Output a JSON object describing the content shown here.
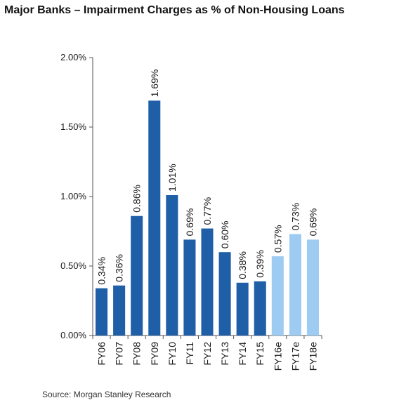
{
  "title": "Major Banks – Impairment Charges as % of Non-Housing Loans",
  "source": "Source: Morgan Stanley Research",
  "chart_data": {
    "type": "bar",
    "title": "Major Banks – Impairment Charges as % of Non-Housing Loans",
    "xlabel": "",
    "ylabel": "",
    "categories": [
      "FY06",
      "FY07",
      "FY08",
      "FY09",
      "FY10",
      "FY11",
      "FY12",
      "FY13",
      "FY14",
      "FY15",
      "FY16e",
      "FY17e",
      "FY18e"
    ],
    "values": [
      0.34,
      0.36,
      0.86,
      1.69,
      1.01,
      0.69,
      0.77,
      0.6,
      0.38,
      0.39,
      0.57,
      0.73,
      0.69
    ],
    "data_labels": [
      "0.34%",
      "0.36%",
      "0.86%",
      "1.69%",
      "1.01%",
      "0.69%",
      "0.77%",
      "0.60%",
      "0.38%",
      "0.39%",
      "0.57%",
      "0.73%",
      "0.69%"
    ],
    "y_ticks": [
      0,
      0.5,
      1.0,
      1.5,
      2.0
    ],
    "y_tick_labels": [
      "0.00%",
      "0.50%",
      "1.00%",
      "1.50%",
      "2.00%"
    ],
    "ylim": [
      0,
      2.0
    ],
    "grid": false,
    "legend": "none",
    "colors": {
      "actual": "#1f5fa8",
      "estimate": "#9dcbf2",
      "axis": "#555555"
    },
    "estimate_categories": [
      "FY16e",
      "FY17e",
      "FY18e"
    ]
  }
}
